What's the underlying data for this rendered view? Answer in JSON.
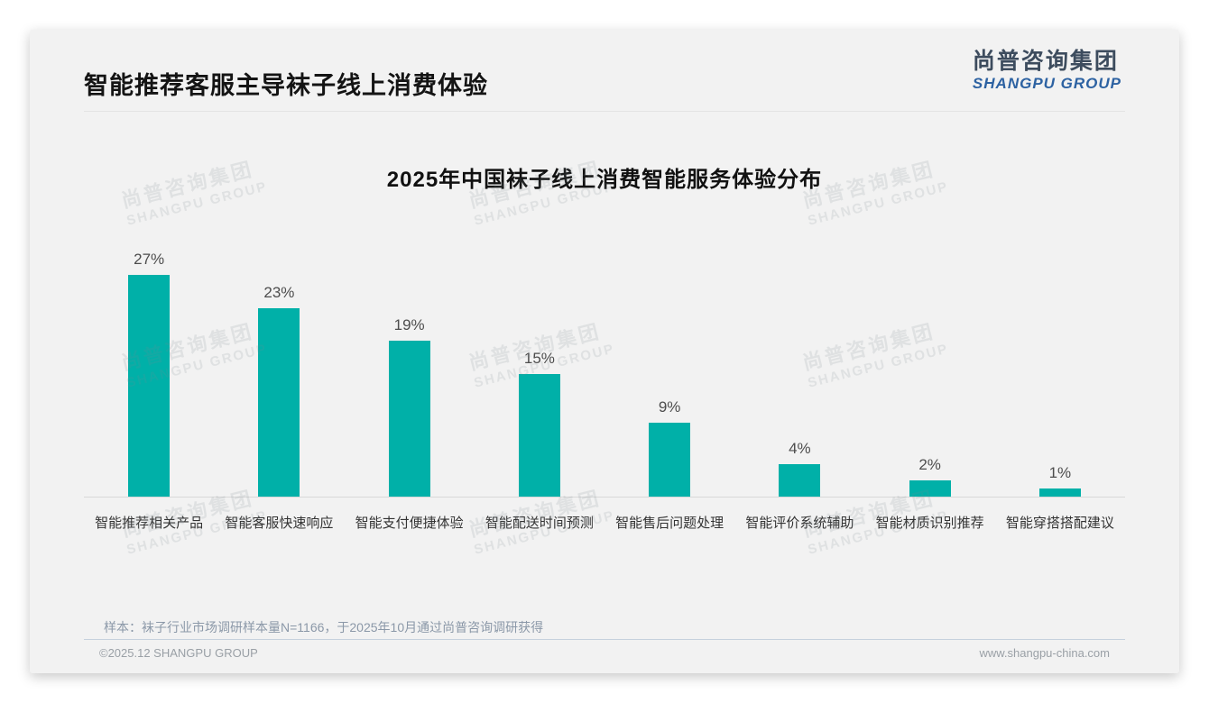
{
  "page": {
    "title": "智能推荐客服主导袜子线上消费体验",
    "logo": {
      "cn": "尚普咨询集团",
      "en": "SHANGPU GROUP"
    },
    "watermark": {
      "cn": "尚普咨询集团",
      "en": "SHANGPU GROUP"
    },
    "sample_note": "样本：袜子行业市场调研样本量N=1166，于2025年10月通过尚普咨询调研获得",
    "footer_left": "©2025.12 SHANGPU GROUP",
    "footer_right": "www.shangpu-china.com"
  },
  "colors": {
    "bar": "#00b0a8",
    "card_bg": "#f2f2f2",
    "logo_blue": "#2d62a2",
    "logo_dark": "#3d4c5e",
    "axis_line": "#d8d8d8"
  },
  "chart_data": {
    "type": "bar",
    "title": "2025年中国袜子线上消费智能服务体验分布",
    "categories": [
      "智能推荐相关产品",
      "智能客服快速响应",
      "智能支付便捷体验",
      "智能配送时间预测",
      "智能售后问题处理",
      "智能评价系统辅助",
      "智能材质识别推荐",
      "智能穿搭搭配建议"
    ],
    "values": [
      27,
      23,
      19,
      15,
      9,
      4,
      2,
      1
    ],
    "unit": "%",
    "ylim": [
      0,
      30
    ],
    "grid": false,
    "legend": false,
    "data_labels": true,
    "bar_color": "#00b0a8"
  }
}
